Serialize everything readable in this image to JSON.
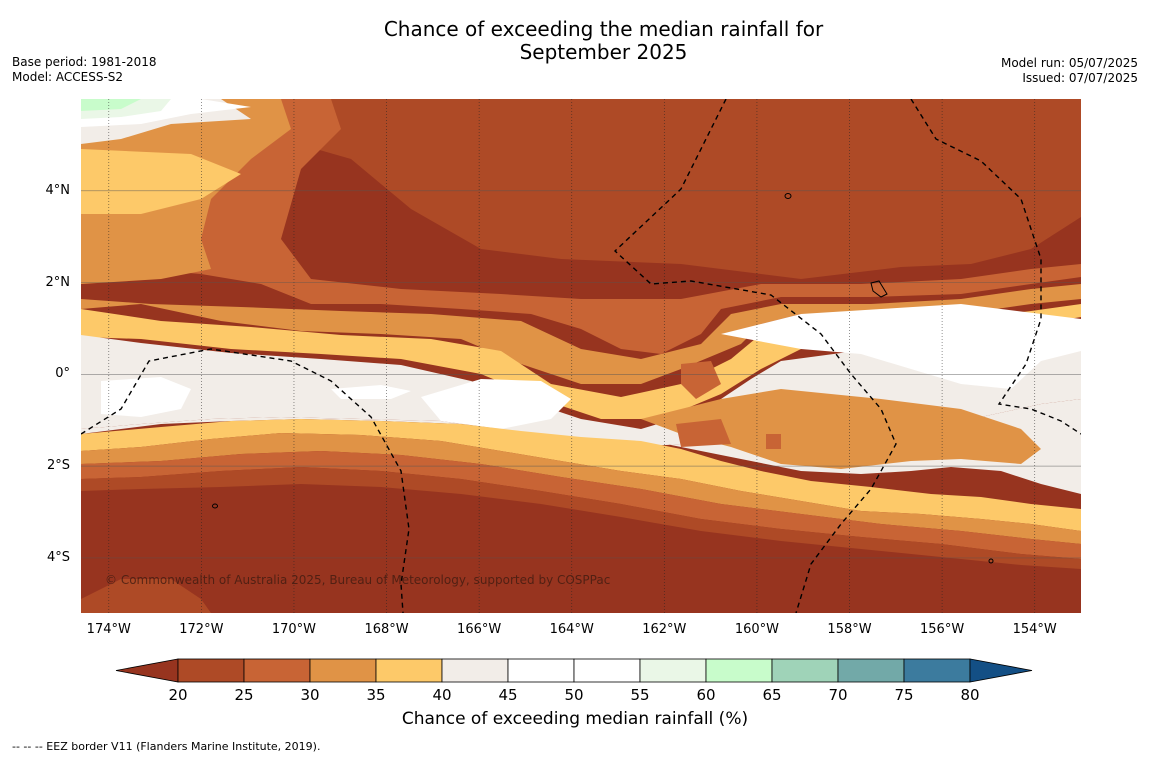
{
  "title": {
    "line1": "Chance of exceeding the median rainfall for",
    "line2": "September 2025"
  },
  "meta": {
    "base_period": "Base period: 1981-2018",
    "model": "Model: ACCESS-S2",
    "model_run": "Model run: 05/07/2025",
    "issued": "Issued: 07/07/2025"
  },
  "map": {
    "copyright": "© Commonwealth of Australia 2025, Bureau of Meteorology, supported by COSPPac",
    "lon_range": [
      -174.6,
      -153.0
    ],
    "lat_range": [
      -5.2,
      6.0
    ],
    "x_ticks": [
      {
        "lon": -174,
        "label": "174°W"
      },
      {
        "lon": -172,
        "label": "172°W"
      },
      {
        "lon": -170,
        "label": "170°W"
      },
      {
        "lon": -168,
        "label": "168°W"
      },
      {
        "lon": -166,
        "label": "166°W"
      },
      {
        "lon": -164,
        "label": "164°W"
      },
      {
        "lon": -162,
        "label": "162°W"
      },
      {
        "lon": -160,
        "label": "160°W"
      },
      {
        "lon": -158,
        "label": "158°W"
      },
      {
        "lon": -156,
        "label": "156°W"
      },
      {
        "lon": -154,
        "label": "154°W"
      }
    ],
    "y_ticks": [
      {
        "lat": 4,
        "label": "4°N"
      },
      {
        "lat": 2,
        "label": "2°N"
      },
      {
        "lat": 0,
        "label": "0°"
      },
      {
        "lat": -2,
        "label": "2°S"
      },
      {
        "lat": -4,
        "label": "4°S"
      }
    ]
  },
  "colorbar": {
    "label": "Chance of exceeding median rainfall (%)",
    "ticks": [
      "20",
      "25",
      "30",
      "35",
      "40",
      "45",
      "50",
      "55",
      "60",
      "65",
      "70",
      "75",
      "80"
    ],
    "under_color": "#97341f",
    "over_color": "#134f85",
    "colors": [
      "#ae4a26",
      "#c86435",
      "#e09346",
      "#fdc969",
      "#f2ede8",
      "#ffffff",
      "#ffffff",
      "#eaf7e7",
      "#c8fccb",
      "#9fd3b8",
      "#72a9a8",
      "#3c7b9e"
    ]
  },
  "footnote": "--  --  -- EEZ border V11 (Flanders Marine Institute, 2019)."
}
